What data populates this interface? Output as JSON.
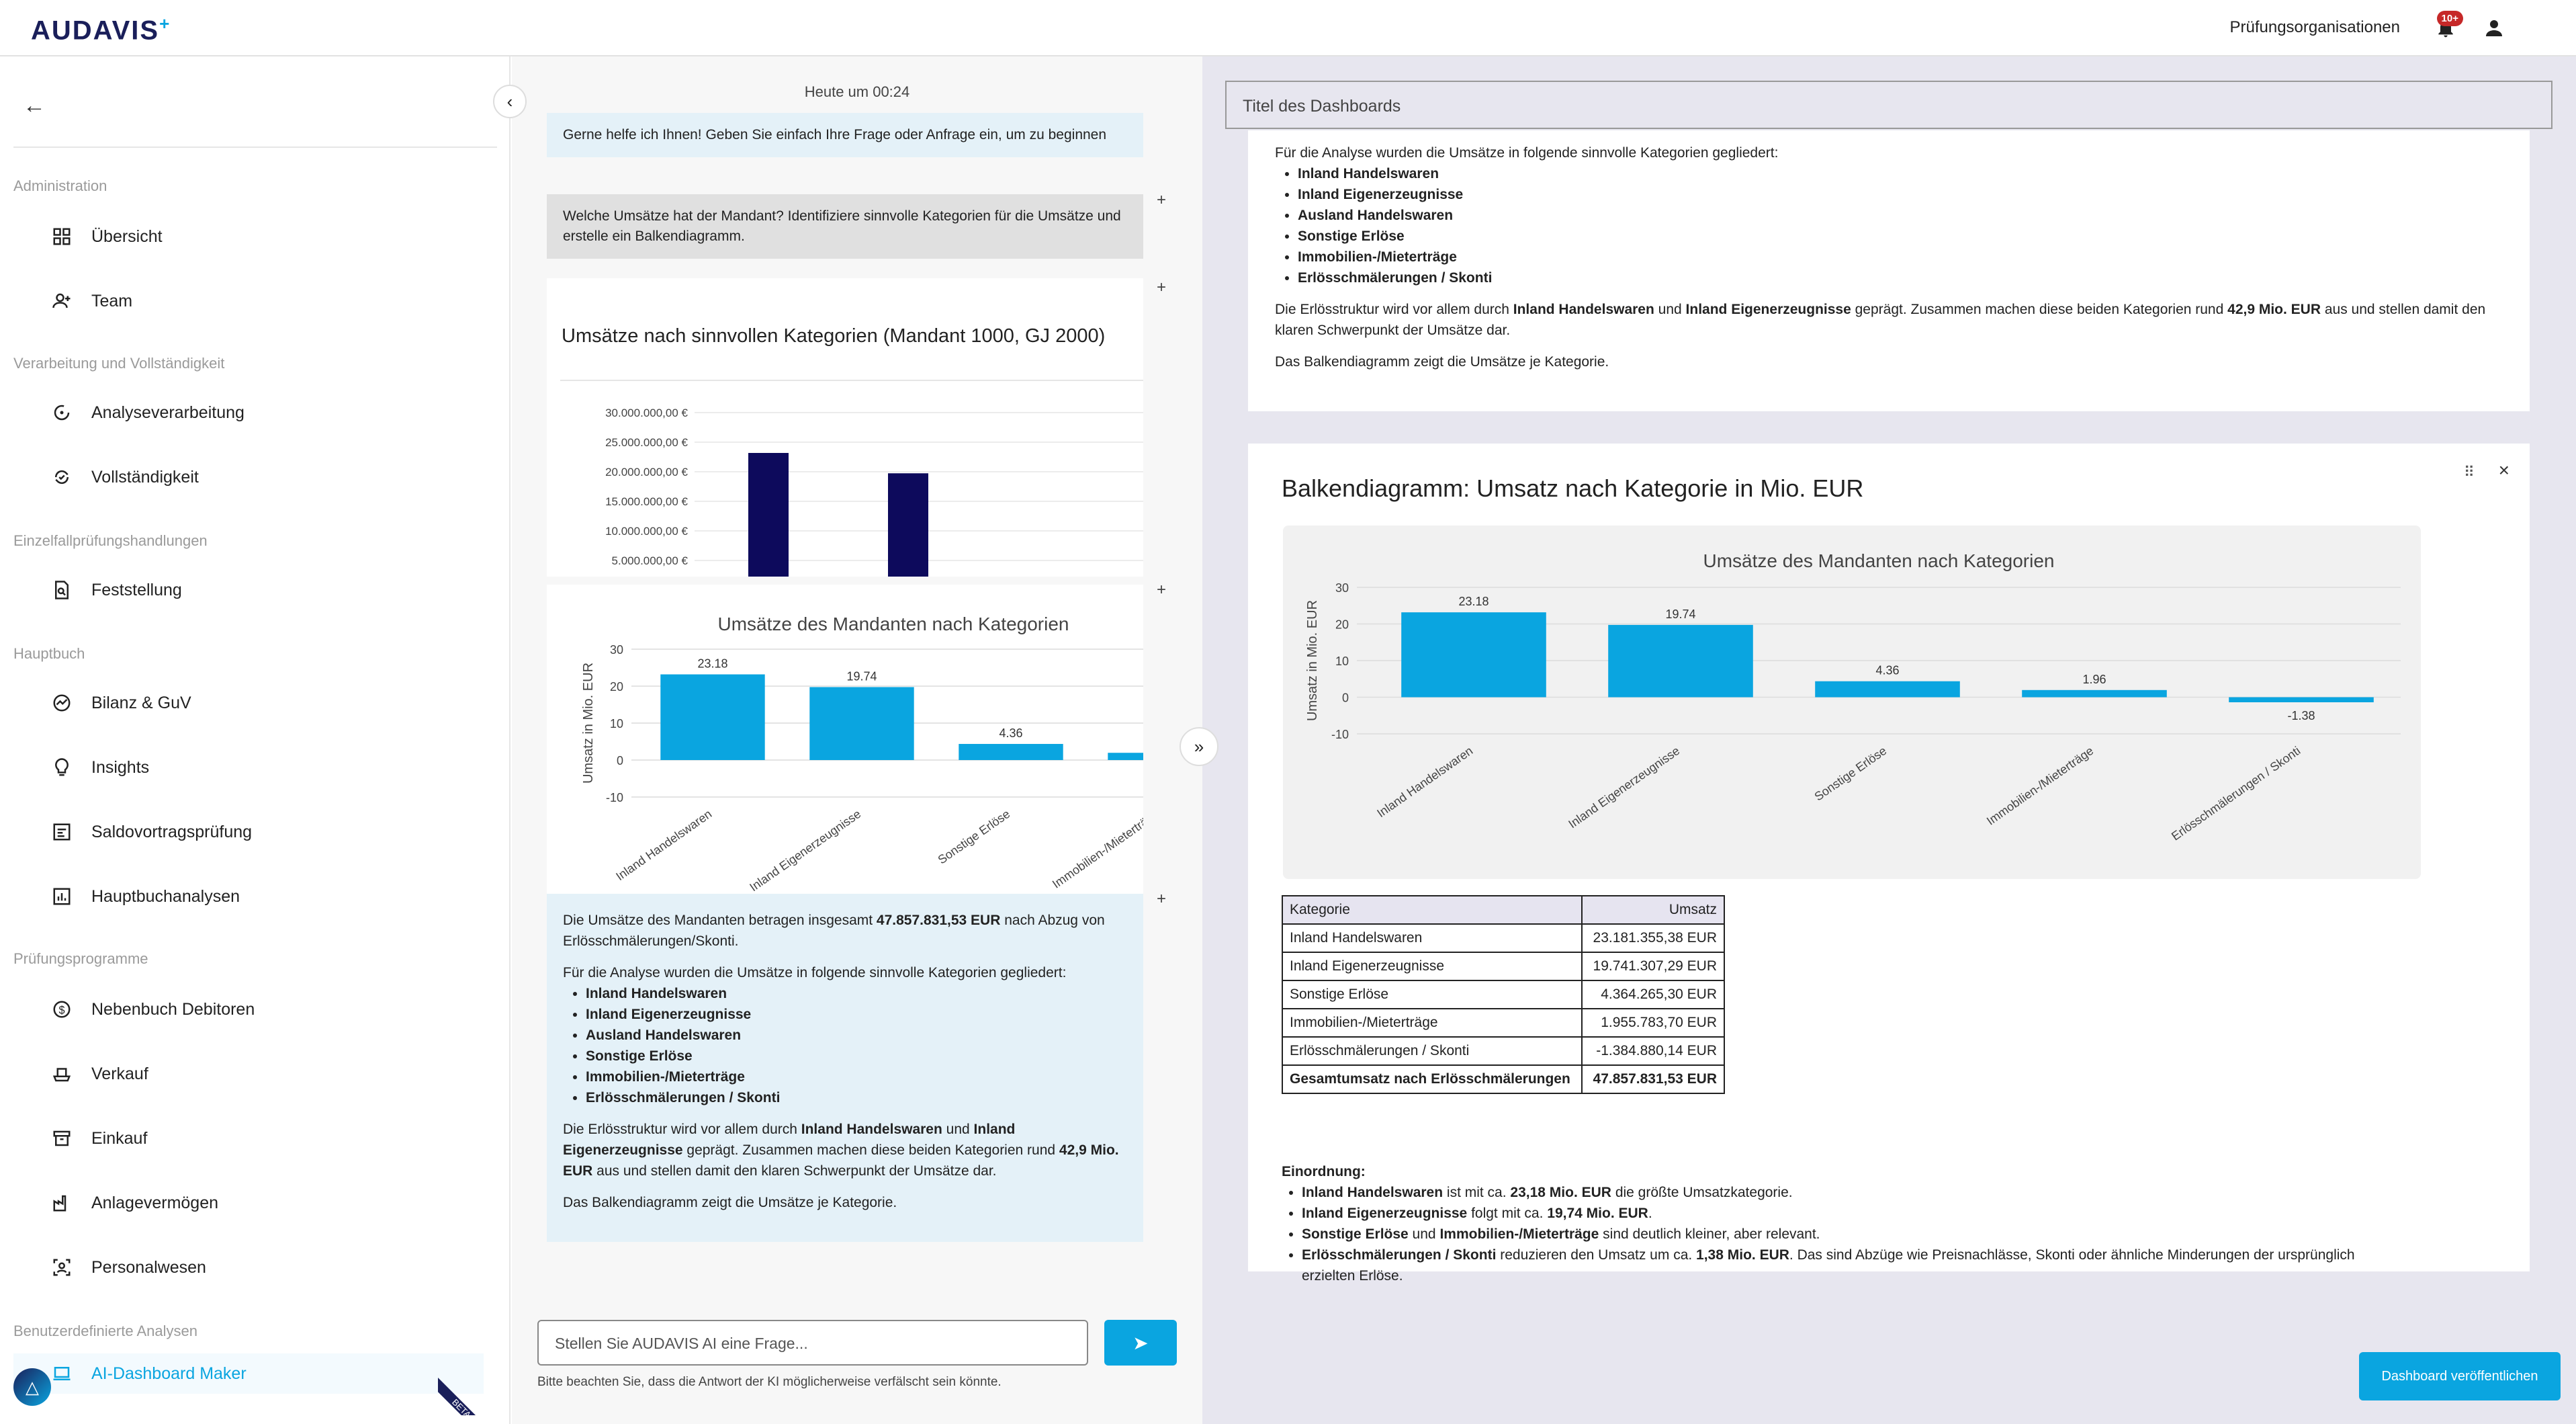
{
  "header": {
    "logo": "AUDAVIS",
    "org_label": "Prüfungsorganisationen",
    "notif_badge": "10+"
  },
  "sidebar": {
    "sections": [
      {
        "title": "Administration",
        "items": [
          "Übersicht",
          "Team"
        ]
      },
      {
        "title": "Verarbeitung und Vollständigkeit",
        "items": [
          "Analyseverarbeitung",
          "Vollständigkeit"
        ]
      },
      {
        "title": "Einzelfallprüfungshandlungen",
        "items": [
          "Feststellung"
        ]
      },
      {
        "title": "Hauptbuch",
        "items": [
          "Bilanz & GuV",
          "Insights",
          "Saldovortragsprüfung",
          "Hauptbuchanalysen"
        ]
      },
      {
        "title": "Prüfungsprogramme",
        "items": [
          "Nebenbuch Debitoren",
          "Verkauf",
          "Einkauf",
          "Anlagevermögen",
          "Personalwesen"
        ]
      },
      {
        "title": "Benutzerdefinierte Analysen",
        "items": [
          "AI-Dashboard Maker"
        ]
      }
    ],
    "beta_label": "BETA"
  },
  "chat": {
    "timestamp": "Heute um 00:24",
    "greeting": "Gerne helfe ich Ihnen! Geben Sie einfach Ihre Frage oder Anfrage ein, um zu beginnen",
    "user_question": "Welche Umsätze hat der Mandant? Identifiziere sinnvolle Kategorien für die Umsätze und erstelle ein Balkendiagramm.",
    "chart_title": "Umsätze nach sinnvollen Kategorien (Mandant 1000, GJ 2000)",
    "summary_p1a": "Die Umsätze des Mandanten betragen insgesamt ",
    "summary_p1b": "47.857.831,53 EUR",
    "summary_p1c": " nach Abzug von Erlösschmälerungen/Skonti.",
    "summary_p2": "Für die Analyse wurden die Umsätze in folgende sinnvolle Kategorien gegliedert:",
    "categories": [
      "Inland Handelswaren",
      "Inland Eigenerzeugnisse",
      "Ausland Handelswaren",
      "Sonstige Erlöse",
      "Immobilien-/Mieterträge",
      "Erlösschmälerungen / Skonti"
    ],
    "summary_p3a": "Die Erlösstruktur wird vor allem durch ",
    "summary_p3b": "Inland Handelswaren",
    "summary_p3c": " und ",
    "summary_p3d": "Inland Eigenerzeugnisse",
    "summary_p3e": " geprägt. Zusammen machen diese beiden Kategorien rund ",
    "summary_p3f": "42,9 Mio. EUR",
    "summary_p3g": " aus und stellen damit den klaren Schwerpunkt der Umsätze dar.",
    "summary_p4": "Das Balkendiagramm zeigt die Umsätze je Kategorie.",
    "input_placeholder": "Stellen Sie AUDAVIS AI eine Frage...",
    "disclaimer": "Bitte beachten Sie, dass die Antwort der KI möglicherweise verfälscht sein könnte."
  },
  "dashboard": {
    "title_placeholder": "Titel des Dashboards",
    "card_title": "Balkendiagramm: Umsatz nach Kategorie in Mio. EUR",
    "table_headers": [
      "Kategorie",
      "Umsatz"
    ],
    "table_rows": [
      [
        "Inland Handelswaren",
        "23.181.355,38 EUR"
      ],
      [
        "Inland Eigenerzeugnisse",
        "19.741.307,29 EUR"
      ],
      [
        "Sonstige Erlöse",
        "4.364.265,30 EUR"
      ],
      [
        "Immobilien-/Mieterträge",
        "1.955.783,70 EUR"
      ],
      [
        "Erlösschmälerungen / Skonti",
        "-1.384.880,14 EUR"
      ],
      [
        "Gesamtumsatz nach Erlösschmälerungen",
        "47.857.831,53 EUR"
      ]
    ],
    "einordnung_title": "Einordnung:",
    "einordnung": [
      [
        "Inland Handelswaren",
        " ist mit ca. ",
        "23,18 Mio. EUR",
        " die größte Umsatzkategorie."
      ],
      [
        "Inland Eigenerzeugnisse",
        " folgt mit ca. ",
        "19,74 Mio. EUR",
        "."
      ],
      [
        "Sonstige Erlöse",
        " und ",
        "Immobilien-/Mieterträge",
        " sind deutlich kleiner, aber relevant."
      ],
      [
        "Erlösschmälerungen / Skonti",
        " reduzieren den Umsatz um ca. ",
        "1,38 Mio. EUR",
        ". Das sind Abzüge wie Preisnachlässe, Skonti oder ähnliche Minderungen der ursprünglich erzielten Erlöse."
      ]
    ],
    "publish_label": "Dashboard veröffentlichen"
  },
  "chart_data": [
    {
      "type": "bar",
      "title": "Umsätze des Mandanten nach Kategorien",
      "ylabel": "Umsatz in Mio. EUR",
      "categories": [
        "Inland Handelswaren",
        "Inland Eigenerzeugnisse",
        "Sonstige Erlöse",
        "Immobilien-/Mieterträge",
        "Erlösschmälerungen / Skonti"
      ],
      "values": [
        23.18,
        19.74,
        4.36,
        1.96,
        -1.38
      ],
      "yticks": [
        "30",
        "20",
        "10",
        "0",
        "-10"
      ],
      "ylim": [
        -10,
        30
      ],
      "color": "#0aa5e0"
    },
    {
      "type": "bar",
      "yticks": [
        "30.000.000,00 €",
        "25.000.000,00 €",
        "20.000.000,00 €",
        "15.000.000,00 €",
        "10.000.000,00 €",
        "5.000.000,00 €"
      ],
      "values": [
        23181355.38,
        19741307.29
      ],
      "color": "#0d0a5c"
    }
  ]
}
